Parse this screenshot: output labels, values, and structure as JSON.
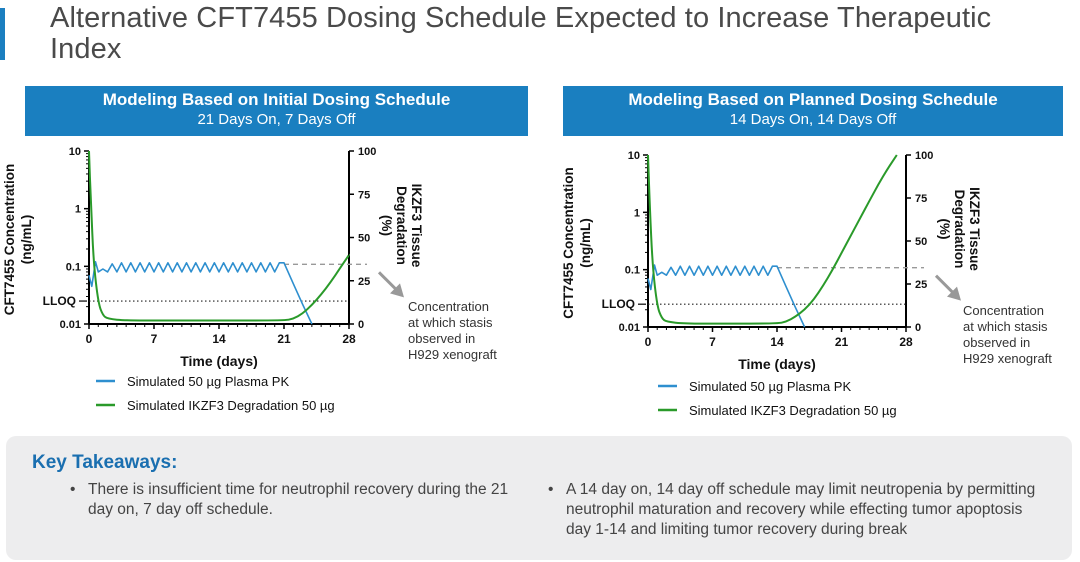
{
  "slide": {
    "title": "Alternative CFT7455 Dosing Schedule Expected to Increase Therapeutic Index",
    "accent_color": "#1a7fc0"
  },
  "panels": [
    {
      "header_title": "Modeling Based on Initial Dosing Schedule",
      "header_subtitle": "21 Days On, 7 Days Off"
    },
    {
      "header_title": "Modeling Based on Planned Dosing Schedule",
      "header_subtitle": "14 Days On, 14 Days Off"
    }
  ],
  "key_takeaways": {
    "title": "Key Takeaways:",
    "bullets": [
      "There is insufficient time for neutrophil recovery during the 21 day on, 7 day off schedule.",
      "A 14 day on, 14 day off schedule may limit neutropenia by permitting neutrophil maturation and recovery while effecting tumor apoptosis day 1-14 and limiting tumor recovery during break"
    ]
  },
  "chart_data": [
    {
      "type": "line",
      "title": "Modeling Based on Initial Dosing Schedule",
      "subtitle": "21 Days On, 7 Days Off",
      "xlabel": "Time (days)",
      "ylabel_left": "CFT7455 Concentration (ng/mL)",
      "ylabel_right": "IKZF3 Tissue Degradation (%)",
      "xlim": [
        0,
        28
      ],
      "x_ticks": [
        "0",
        "7",
        "14",
        "21",
        "28"
      ],
      "y_left_scale": "log",
      "y_left_lim": [
        0.01,
        10
      ],
      "y_left_ticks": [
        "0.01",
        "0.1",
        "1",
        "10"
      ],
      "y_right_lim": [
        0,
        100
      ],
      "y_right_ticks": [
        "0",
        "25",
        "50",
        "75",
        "100"
      ],
      "lloq_label": "LLOQ",
      "lloq_value": 0.025,
      "stasis_concentration": 0.1,
      "dosing_days_on": 21,
      "annotation": "Concentration at which stasis observed in H929 xenograft",
      "series": [
        {
          "name": "Simulated 50 µg Plasma PK",
          "axis": "left",
          "color": "#2e8fcf",
          "x": [
            0,
            0.3,
            0.7,
            1,
            2,
            3,
            4,
            5,
            6,
            7,
            8,
            9,
            10,
            11,
            12,
            13,
            14,
            15,
            16,
            17,
            18,
            19,
            20,
            21,
            22,
            23,
            24
          ],
          "y": [
            0.07,
            0.045,
            0.12,
            0.09,
            0.11,
            0.115,
            0.115,
            0.115,
            0.115,
            0.115,
            0.115,
            0.115,
            0.115,
            0.115,
            0.115,
            0.115,
            0.115,
            0.115,
            0.115,
            0.115,
            0.115,
            0.115,
            0.115,
            0.115,
            0.05,
            0.022,
            0.01
          ]
        },
        {
          "name": "Simulated IKZF3 Degradation 50 µg",
          "axis": "right",
          "color": "#2a9a2a",
          "x": [
            0,
            0.2,
            0.5,
            1,
            1.5,
            2,
            4,
            8,
            14,
            21,
            22,
            23,
            24,
            25,
            26,
            27,
            28
          ],
          "y": [
            100,
            70,
            35,
            12,
            5,
            3,
            2,
            2,
            2,
            2,
            3,
            6,
            11,
            17,
            24,
            32,
            40
          ]
        }
      ]
    },
    {
      "type": "line",
      "title": "Modeling Based on Planned Dosing Schedule",
      "subtitle": "14 Days On, 14 Days Off",
      "xlabel": "Time (days)",
      "ylabel_left": "CFT7455 Concentration (ng/mL)",
      "ylabel_right": "IKZF3 Tissue Degradation (%)",
      "xlim": [
        0,
        28
      ],
      "x_ticks": [
        "0",
        "7",
        "14",
        "21",
        "28"
      ],
      "y_left_scale": "log",
      "y_left_lim": [
        0.01,
        10
      ],
      "y_left_ticks": [
        "0.01",
        "0.1",
        "1",
        "10"
      ],
      "y_right_lim": [
        0,
        100
      ],
      "y_right_ticks": [
        "0",
        "25",
        "50",
        "75",
        "100"
      ],
      "lloq_label": "LLOQ",
      "lloq_value": 0.025,
      "stasis_concentration": 0.1,
      "dosing_days_on": 14,
      "annotation": "Concentration at which stasis observed in H929 xenograft",
      "series": [
        {
          "name": "Simulated 50 µg Plasma PK",
          "axis": "left",
          "color": "#2e8fcf",
          "x": [
            0,
            0.3,
            0.7,
            1,
            2,
            3,
            4,
            5,
            6,
            7,
            8,
            9,
            10,
            11,
            12,
            13,
            14,
            15,
            16,
            17
          ],
          "y": [
            0.07,
            0.045,
            0.12,
            0.09,
            0.11,
            0.115,
            0.115,
            0.115,
            0.115,
            0.115,
            0.115,
            0.115,
            0.115,
            0.115,
            0.115,
            0.115,
            0.115,
            0.05,
            0.022,
            0.01
          ]
        },
        {
          "name": "Simulated IKZF3 Degradation 50 µg",
          "axis": "right",
          "color": "#2a9a2a",
          "x": [
            0,
            0.2,
            0.5,
            1,
            1.5,
            2,
            4,
            8,
            14,
            15,
            16,
            17,
            18,
            19,
            20,
            21,
            22,
            23,
            24,
            25,
            26,
            27
          ],
          "y": [
            100,
            70,
            35,
            12,
            5,
            3,
            2,
            2,
            2,
            3,
            6,
            10,
            16,
            24,
            33,
            43,
            53,
            63,
            73,
            83,
            92,
            100
          ]
        }
      ]
    }
  ]
}
